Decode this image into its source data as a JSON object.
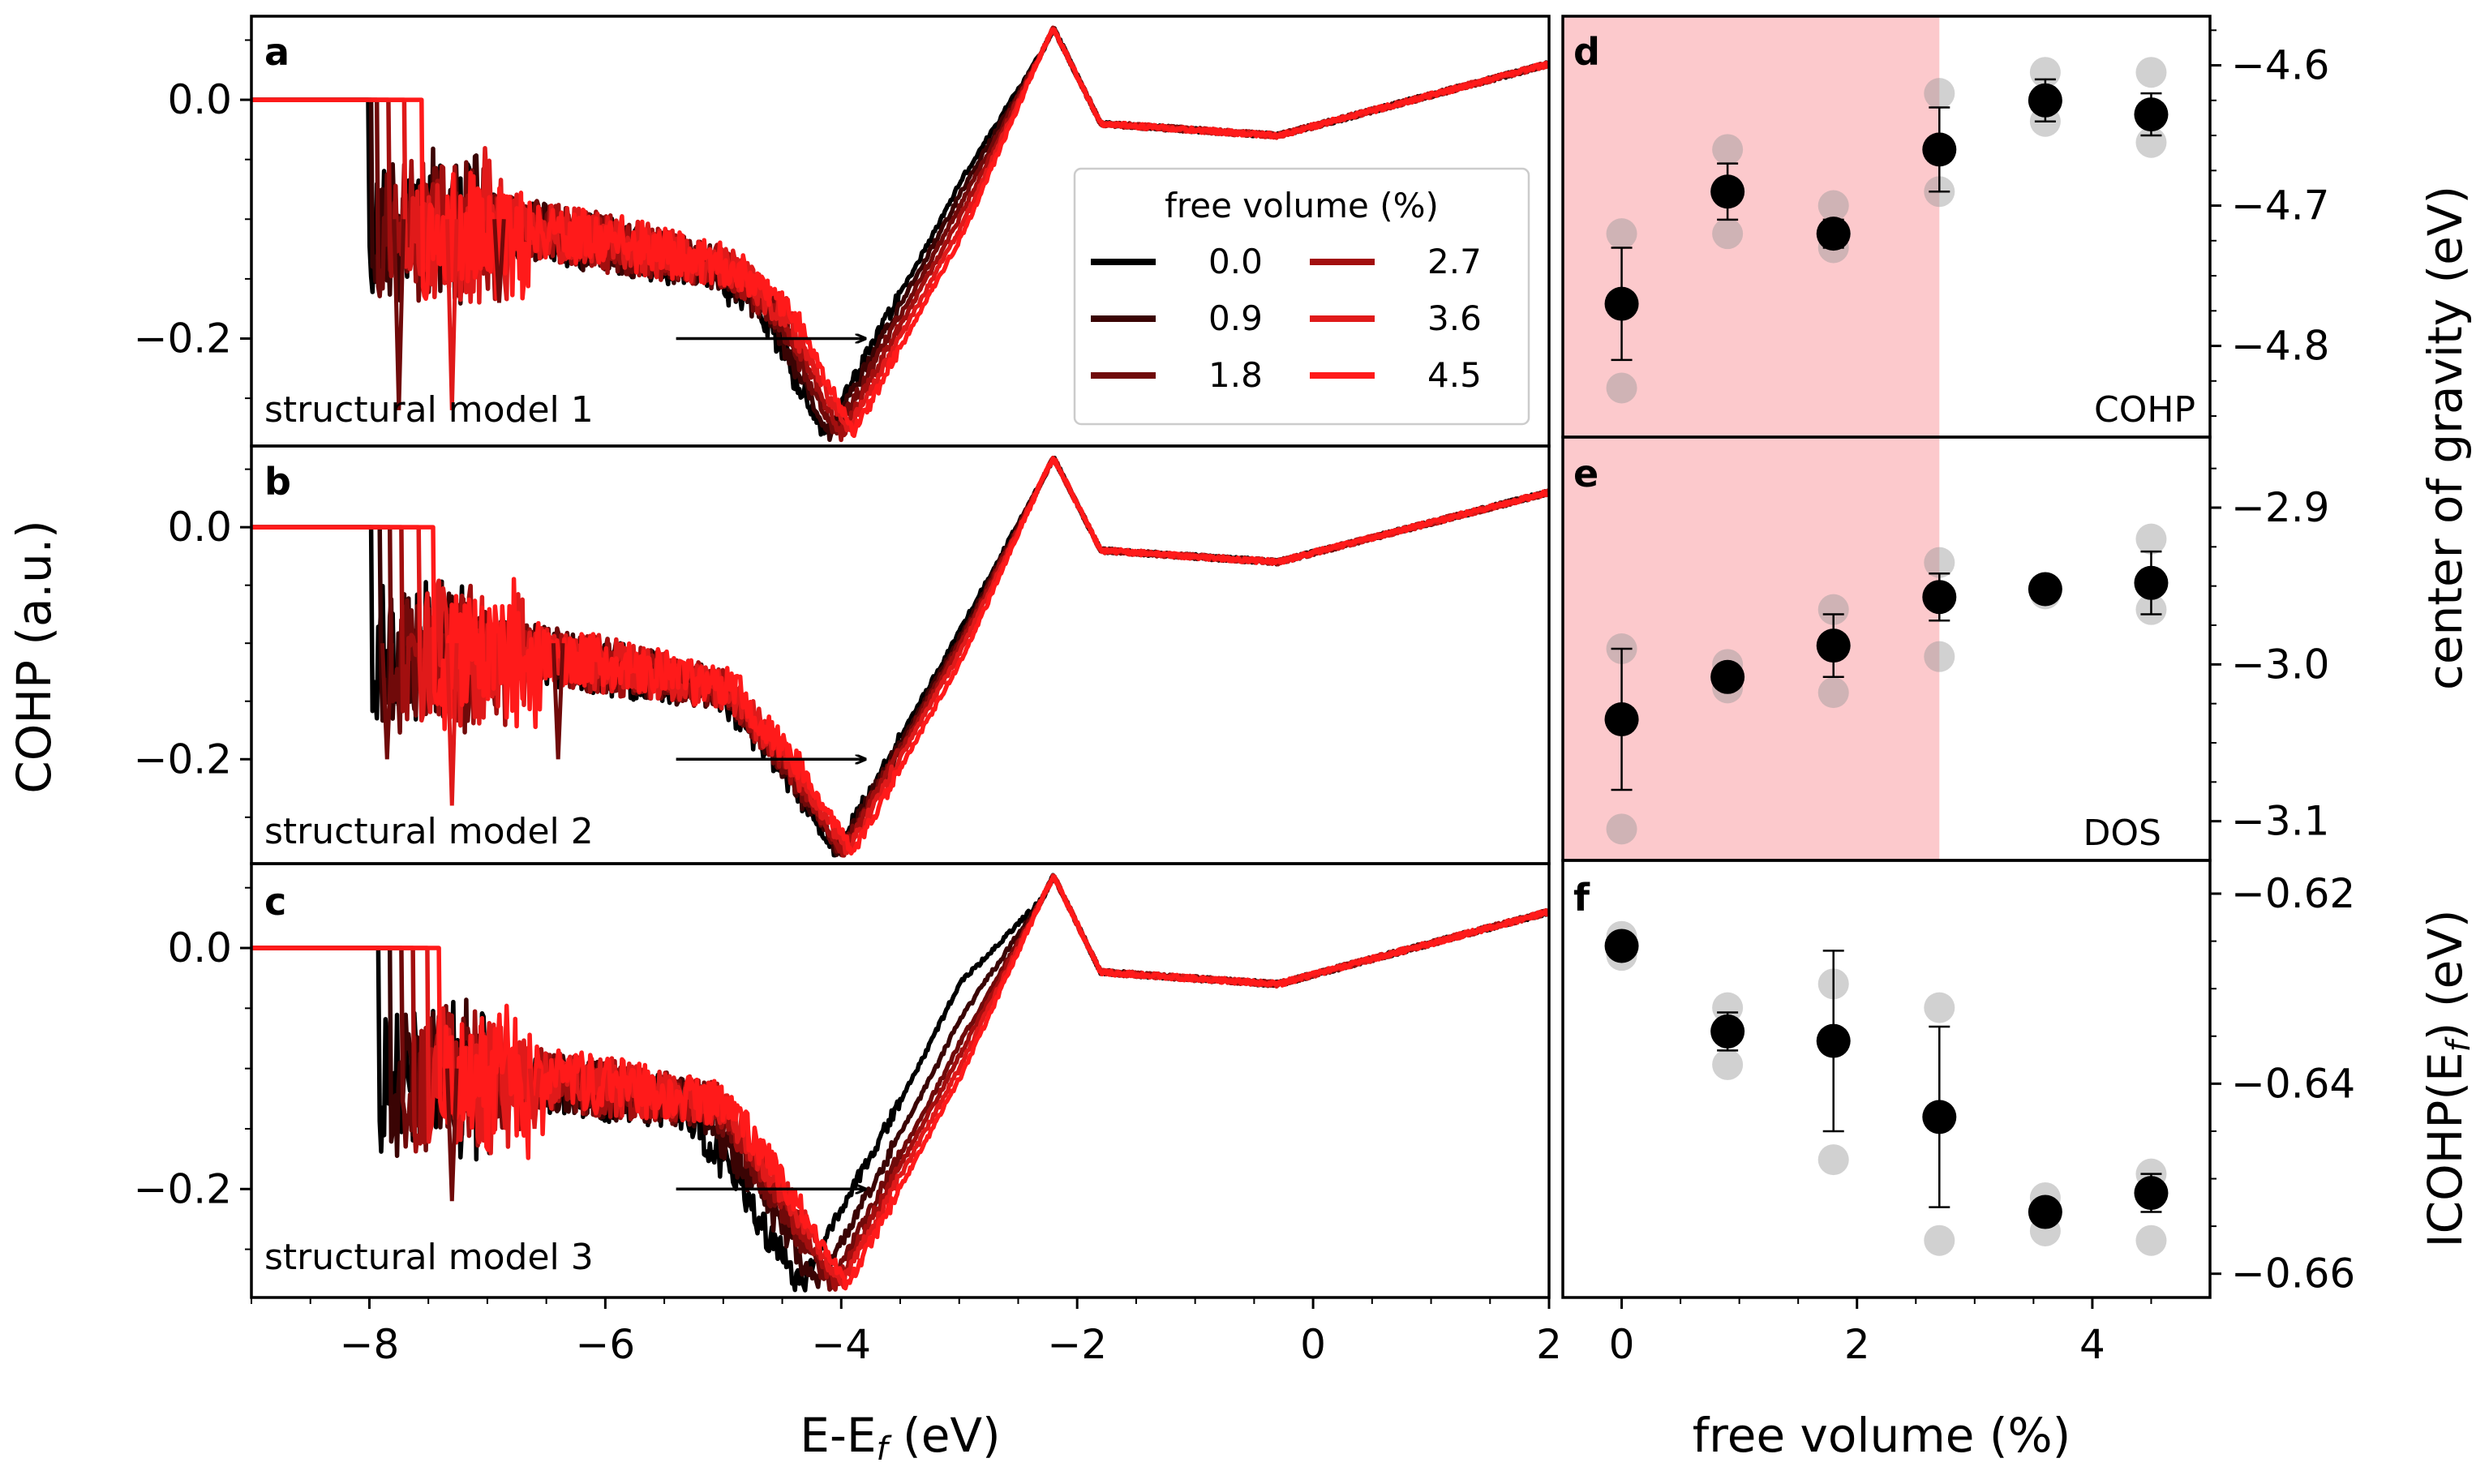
{
  "figure": {
    "left_ylabel": "COHP (a.u.)",
    "left_xlabel": "E-E",
    "left_xlabel_sub": "f",
    "left_xlabel_unit": " (eV)",
    "right_xlabel": "free volume (%)",
    "right_ylabel_top": "center of gravity (eV)",
    "right_ylabel_bottom_main": "ICOHP(E",
    "right_ylabel_bottom_sub": "f",
    "right_ylabel_bottom_end": ") (eV)"
  },
  "legend": {
    "title": "free volume (%)",
    "entries": [
      {
        "label": "0.0",
        "color": "#000000"
      },
      {
        "label": "0.9",
        "color": "#3a0404"
      },
      {
        "label": "1.8",
        "color": "#700a0a"
      },
      {
        "label": "2.7",
        "color": "#a20f0f"
      },
      {
        "label": "3.6",
        "color": "#e01a1a"
      },
      {
        "label": "4.5",
        "color": "#ff1a1a"
      }
    ]
  },
  "chart_data": [
    {
      "panel": "a",
      "type": "line",
      "annotation": "structural model 1",
      "xlim": [
        -9,
        2
      ],
      "ylim": [
        -0.29,
        0.07
      ],
      "xticks": [
        "-8",
        "-6",
        "-4",
        "-2",
        "0",
        "2"
      ],
      "xtick_values": [
        -8,
        -6,
        -4,
        -2,
        0,
        2
      ],
      "yticks": [
        "0.0",
        "-0.2"
      ],
      "ytick_values": [
        0.0,
        -0.2
      ],
      "arrow": {
        "from": [
          -5.4,
          -0.2
        ],
        "to": [
          -3.8,
          -0.2
        ]
      },
      "series_names": [
        "0.0",
        "0.9",
        "1.8",
        "2.7",
        "3.6",
        "4.5"
      ],
      "onset": [
        -8.0,
        -7.98,
        -7.93,
        -7.83,
        -7.7,
        -7.55
      ],
      "min_x": [
        -4.15,
        -4.1,
        -4.05,
        -4.0,
        -3.95,
        -3.9
      ],
      "spikes": [
        [
          -7.75,
          -0.26
        ],
        [
          -7.3,
          -0.26
        ],
        [
          -6.9,
          -0.17
        ]
      ],
      "key_points": [
        [
          -9,
          0
        ],
        [
          -8,
          0
        ],
        [
          -7.9,
          -0.1
        ],
        [
          -7.0,
          -0.1
        ],
        [
          -5.0,
          -0.14
        ],
        [
          -4.5,
          -0.18
        ],
        [
          -4.0,
          -0.28
        ],
        [
          -3.0,
          -0.1
        ],
        [
          -2.2,
          0.06
        ],
        [
          -1.8,
          -0.02
        ],
        [
          -0.3,
          -0.03
        ],
        [
          2.0,
          0.03
        ]
      ]
    },
    {
      "panel": "b",
      "type": "line",
      "annotation": "structural model 2",
      "xlim": [
        -9,
        2
      ],
      "ylim": [
        -0.29,
        0.07
      ],
      "xticks": [
        "-8",
        "-6",
        "-4",
        "-2",
        "0",
        "2"
      ],
      "xtick_values": [
        -8,
        -6,
        -4,
        -2,
        0,
        2
      ],
      "yticks": [
        "0.0",
        "-0.2"
      ],
      "ytick_values": [
        0.0,
        -0.2
      ],
      "arrow": {
        "from": [
          -5.4,
          -0.2
        ],
        "to": [
          -3.8,
          -0.2
        ]
      },
      "series_names": [
        "0.0",
        "0.9",
        "1.8",
        "2.7",
        "3.6",
        "4.5"
      ],
      "onset": [
        -7.98,
        -7.9,
        -7.82,
        -7.72,
        -7.58,
        -7.45
      ],
      "min_x": [
        -4.05,
        -4.02,
        -4.0,
        -3.98,
        -3.95,
        -3.9
      ],
      "spikes": [
        [
          -7.85,
          -0.2
        ],
        [
          -7.3,
          -0.24
        ],
        [
          -6.4,
          -0.2
        ]
      ],
      "key_points": [
        [
          -9,
          0
        ],
        [
          -8,
          0
        ],
        [
          -7.9,
          -0.1
        ],
        [
          -7.0,
          -0.1
        ],
        [
          -5.0,
          -0.14
        ],
        [
          -4.5,
          -0.2
        ],
        [
          -4.0,
          -0.28
        ],
        [
          -3.0,
          -0.1
        ],
        [
          -2.2,
          0.06
        ],
        [
          -1.8,
          -0.02
        ],
        [
          -0.3,
          -0.03
        ],
        [
          2.0,
          0.03
        ]
      ]
    },
    {
      "panel": "c",
      "type": "line",
      "annotation": "structural model 3",
      "xlim": [
        -9,
        2
      ],
      "ylim": [
        -0.29,
        0.07
      ],
      "xticks": [
        "-8",
        "-6",
        "-4",
        "-2",
        "0",
        "2"
      ],
      "xtick_values": [
        -8,
        -6,
        -4,
        -2,
        0,
        2
      ],
      "yticks": [
        "0.0",
        "-0.2"
      ],
      "ytick_values": [
        0.0,
        -0.2
      ],
      "arrow": {
        "from": [
          -5.4,
          -0.2
        ],
        "to": [
          -3.8,
          -0.2
        ]
      },
      "series_names": [
        "0.0",
        "0.9",
        "1.8",
        "2.7",
        "3.6",
        "4.5"
      ],
      "onset": [
        -7.92,
        -7.82,
        -7.72,
        -7.62,
        -7.5,
        -7.4
      ],
      "min_x": [
        -4.35,
        -4.2,
        -4.1,
        -4.05,
        -4.0,
        -3.95
      ],
      "spikes": [
        [
          -7.3,
          -0.21
        ],
        [
          -6.6,
          -0.15
        ]
      ],
      "key_points": [
        [
          -9,
          0
        ],
        [
          -8,
          0
        ],
        [
          -7.9,
          -0.1
        ],
        [
          -7.0,
          -0.1
        ],
        [
          -5.0,
          -0.13
        ],
        [
          -4.5,
          -0.2
        ],
        [
          -4.0,
          -0.28
        ],
        [
          -3.0,
          -0.1
        ],
        [
          -2.2,
          0.06
        ],
        [
          -1.8,
          -0.02
        ],
        [
          -0.3,
          -0.03
        ],
        [
          2.0,
          0.03
        ]
      ]
    },
    {
      "panel": "d",
      "type": "scatter",
      "annotation": "COHP",
      "shaded_until": 2.7,
      "xlim": [
        -0.5,
        5.0
      ],
      "ylim": [
        -4.865,
        -4.565
      ],
      "xticks": [
        "0",
        "2",
        "4"
      ],
      "xtick_values": [
        0,
        2,
        4
      ],
      "yticks": [
        "-4.6",
        "-4.7",
        "-4.8"
      ],
      "ytick_values": [
        -4.6,
        -4.7,
        -4.8
      ],
      "x": [
        0.0,
        0.9,
        1.8,
        2.7,
        3.6,
        4.5
      ],
      "y": [
        -4.77,
        -4.69,
        -4.72,
        -4.66,
        -4.625,
        -4.635
      ],
      "err": [
        0.04,
        0.02,
        0.01,
        0.03,
        0.015,
        0.015
      ],
      "samples": [
        [
          -4.72,
          -4.83
        ],
        [
          -4.66,
          -4.72
        ],
        [
          -4.7,
          -4.73
        ],
        [
          -4.62,
          -4.69
        ],
        [
          -4.605,
          -4.64
        ],
        [
          -4.605,
          -4.655
        ]
      ]
    },
    {
      "panel": "e",
      "type": "scatter",
      "annotation": "DOS",
      "shaded_until": 2.7,
      "xlim": [
        -0.5,
        5.0
      ],
      "ylim": [
        -3.125,
        -2.855
      ],
      "xticks": [
        "0",
        "2",
        "4"
      ],
      "xtick_values": [
        0,
        2,
        4
      ],
      "yticks": [
        "-2.9",
        "-3.0",
        "-3.1"
      ],
      "ytick_values": [
        -2.9,
        -3.0,
        -3.1
      ],
      "x": [
        0.0,
        0.9,
        1.8,
        2.7,
        3.6,
        4.5
      ],
      "y": [
        -3.035,
        -3.008,
        -2.988,
        -2.957,
        -2.952,
        -2.948
      ],
      "err": [
        0.045,
        0.005,
        0.02,
        0.015,
        0.005,
        0.02
      ],
      "samples": [
        [
          -2.99,
          -3.105
        ],
        [
          -3.0,
          -3.015
        ],
        [
          -2.965,
          -3.018
        ],
        [
          -2.935,
          -2.995
        ],
        [
          -2.952,
          -2.955
        ],
        [
          -2.92,
          -2.965
        ]
      ]
    },
    {
      "panel": "f",
      "type": "scatter",
      "annotation": "",
      "shaded_until": null,
      "xlim": [
        -0.5,
        5.0
      ],
      "ylim": [
        -0.6625,
        -0.6165
      ],
      "xticks": [
        "0",
        "2",
        "4"
      ],
      "xtick_values": [
        0,
        2,
        4
      ],
      "yticks": [
        "-0.62",
        "-0.64",
        "-0.66"
      ],
      "ytick_values": [
        -0.62,
        -0.64,
        -0.66
      ],
      "x": [
        0.0,
        0.9,
        1.8,
        2.7,
        3.6,
        4.5
      ],
      "y": [
        -0.6255,
        -0.6345,
        -0.6355,
        -0.6435,
        -0.6535,
        -0.6515
      ],
      "err": [
        0.0005,
        0.002,
        0.0095,
        0.0095,
        0.001,
        0.002
      ],
      "samples": [
        [
          -0.6245,
          -0.6265
        ],
        [
          -0.632,
          -0.638
        ],
        [
          -0.6295,
          -0.648
        ],
        [
          -0.632,
          -0.6565
        ],
        [
          -0.652,
          -0.6555
        ],
        [
          -0.6495,
          -0.6565
        ]
      ]
    }
  ]
}
